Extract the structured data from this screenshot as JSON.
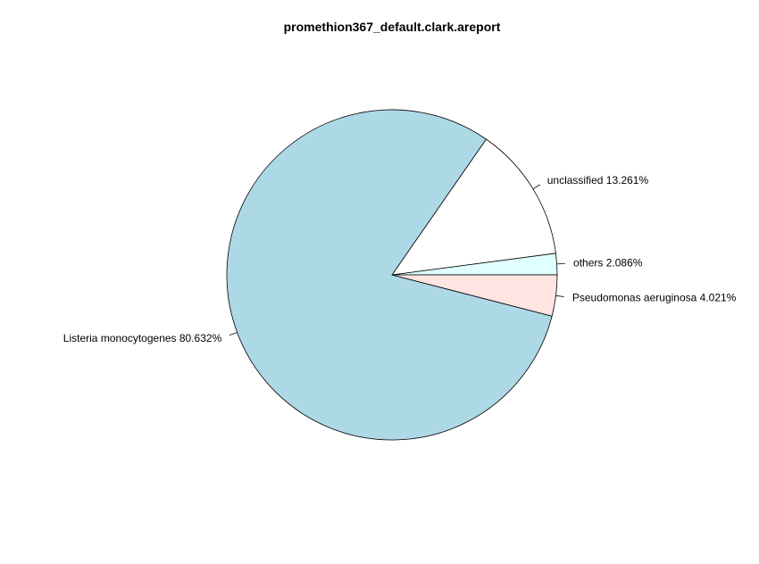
{
  "chart_data": {
    "type": "pie",
    "title": "promethion367_default.clark.areport",
    "start_angle_deg": 0,
    "direction": "counterclockwise",
    "slices": [
      {
        "label": "others 2.086%",
        "value": 2.086,
        "color": "#E0FFFF"
      },
      {
        "label": "unclassified 13.261%",
        "value": 13.261,
        "color": "#FFFFFF"
      },
      {
        "label": "Listeria monocytogenes 80.632%",
        "value": 80.632,
        "color": "#ADD8E6"
      },
      {
        "label": "Pseudomonas aeruginosa 4.021%",
        "value": 4.021,
        "color": "#FFE4E1"
      }
    ],
    "legend": "none"
  }
}
